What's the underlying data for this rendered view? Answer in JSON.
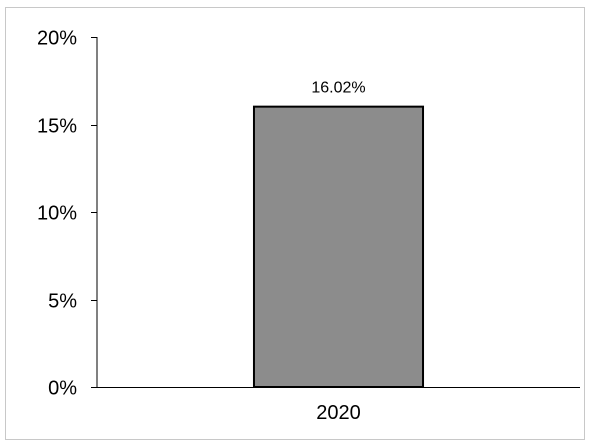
{
  "chart_data": {
    "type": "bar",
    "categories": [
      "2020"
    ],
    "values": [
      16.02
    ],
    "data_labels": [
      "16.02%"
    ],
    "yticks": [
      {
        "value": 0,
        "label": "0%"
      },
      {
        "value": 5,
        "label": "5%"
      },
      {
        "value": 10,
        "label": "10%"
      },
      {
        "value": 15,
        "label": "15%"
      },
      {
        "value": 20,
        "label": "20%"
      }
    ],
    "ylim": [
      0,
      20
    ],
    "title": "",
    "xlabel": "",
    "ylabel": "",
    "grid": false,
    "legend": "none",
    "colors": {
      "bar_fill": "#8c8c8c",
      "bar_stroke": "#000000",
      "axis": "#000000"
    }
  }
}
